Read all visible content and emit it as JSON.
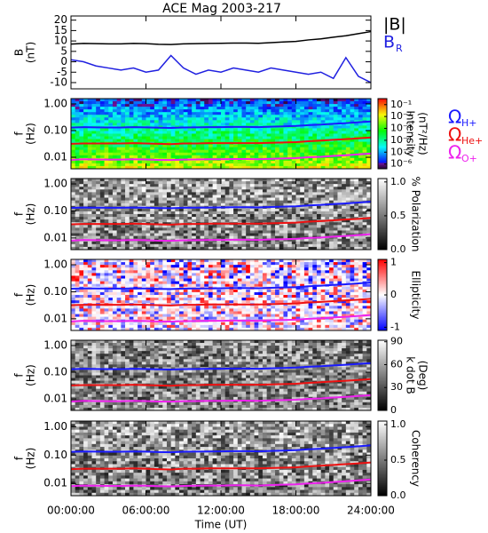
{
  "chart_data": [
    {
      "type": "line",
      "title": "ACE Mag 2003-217",
      "ylabel": "B",
      "yunit": "(nT)",
      "x": [
        0,
        1,
        2,
        3,
        4,
        5,
        6,
        7,
        8,
        9,
        10,
        11,
        12,
        13,
        14,
        15,
        16,
        17,
        18,
        19,
        20,
        21,
        22,
        23,
        24
      ],
      "xlim": [
        0,
        24
      ],
      "ylim": [
        -13,
        22
      ],
      "yticks": [
        -10,
        -5,
        0,
        5,
        10,
        15,
        20
      ],
      "series": [
        {
          "name": "|B|",
          "color": "#000000",
          "values": [
            8.5,
            8.8,
            8.7,
            8.6,
            8.6,
            8.8,
            8.7,
            8.4,
            8.3,
            8.6,
            8.7,
            8.8,
            8.9,
            9.0,
            9.0,
            8.9,
            9.2,
            9.5,
            9.8,
            10.5,
            11,
            11.8,
            12.5,
            13.5,
            14.5
          ]
        },
        {
          "name": "B",
          "subscript": "R",
          "color": "#2020e0",
          "values": [
            1,
            0,
            -2,
            -3,
            -4,
            -3,
            -5,
            -4,
            3,
            -3,
            -6,
            -4,
            -5,
            -3,
            -4,
            -5,
            -3,
            -4,
            -5,
            -6,
            -5,
            -8,
            2,
            -7,
            -10
          ]
        }
      ]
    },
    {
      "type": "spectrogram",
      "ylabel": "f",
      "yunit": "(Hz)",
      "ylog": true,
      "xlim": [
        0,
        24
      ],
      "ylim": [
        0.0037,
        1.58
      ],
      "yticks": [
        {
          "value": 1,
          "label": "1.00"
        },
        {
          "value": 0.1,
          "label": "0.10"
        },
        {
          "value": 0.01,
          "label": "0.01"
        }
      ],
      "colormap": "rainbow",
      "clog": true,
      "clim": [
        4e-07,
        0.32
      ],
      "clabel": "Intensity",
      "cunit": "(nT²/Hz)",
      "cticks": [
        {
          "value": 0.1,
          "label": "10⁻¹"
        },
        {
          "value": 0.01,
          "label": "10⁻²"
        },
        {
          "value": 0.001,
          "label": "10⁻³"
        },
        {
          "value": 0.0001,
          "label": "10⁻⁴"
        },
        {
          "value": 1e-05,
          "label": "10⁻⁵"
        },
        {
          "value": 1e-06,
          "label": "10⁻⁶"
        }
      ],
      "x": [
        0,
        1,
        2,
        3,
        4,
        5,
        6,
        7,
        8,
        9,
        10,
        11,
        12,
        13,
        14,
        15,
        16,
        17,
        18,
        19,
        20,
        21,
        22,
        23,
        24
      ],
      "series": [
        {
          "name": "Ω",
          "subscript": "H+",
          "color": "#1a1aff",
          "values": [
            0.13,
            0.134,
            0.132,
            0.131,
            0.131,
            0.134,
            0.132,
            0.128,
            0.126,
            0.131,
            0.132,
            0.134,
            0.135,
            0.137,
            0.137,
            0.135,
            0.14,
            0.144,
            0.149,
            0.16,
            0.167,
            0.179,
            0.19,
            0.205,
            0.22
          ]
        },
        {
          "name": "Ω",
          "subscript": "He+",
          "color": "#ee1111",
          "values": [
            0.032,
            0.033,
            0.033,
            0.033,
            0.033,
            0.034,
            0.033,
            0.032,
            0.031,
            0.033,
            0.033,
            0.034,
            0.034,
            0.034,
            0.034,
            0.034,
            0.035,
            0.036,
            0.037,
            0.04,
            0.042,
            0.045,
            0.048,
            0.051,
            0.055
          ]
        },
        {
          "name": "Ω",
          "subscript": "O+",
          "color": "#ee22ee",
          "values": [
            0.008,
            0.0084,
            0.0083,
            0.0082,
            0.0082,
            0.0084,
            0.0083,
            0.008,
            0.0079,
            0.0082,
            0.0083,
            0.0084,
            0.0084,
            0.0086,
            0.0086,
            0.0084,
            0.0088,
            0.009,
            0.0093,
            0.01,
            0.0104,
            0.0112,
            0.0119,
            0.0128,
            0.0138
          ]
        }
      ]
    },
    {
      "type": "spectrogram",
      "ylabel": "f",
      "yunit": "(Hz)",
      "ylog": true,
      "xlim": [
        0,
        24
      ],
      "ylim": [
        0.0037,
        1.58
      ],
      "yticks": [
        {
          "value": 1,
          "label": "1.00"
        },
        {
          "value": 0.1,
          "label": "0.10"
        },
        {
          "value": 0.01,
          "label": "0.01"
        }
      ],
      "colormap": "gray",
      "clim": [
        0,
        1.05
      ],
      "clabel": "% Polarization",
      "cticks": [
        {
          "value": 1,
          "label": "1.0"
        },
        {
          "value": 0.5,
          "label": "0.5"
        },
        {
          "value": 0,
          "label": "0.0"
        }
      ]
    },
    {
      "type": "spectrogram",
      "ylabel": "f",
      "yunit": "(Hz)",
      "ylog": true,
      "xlim": [
        0,
        24
      ],
      "ylim": [
        0.0037,
        1.58
      ],
      "yticks": [
        {
          "value": 1,
          "label": "1.00"
        },
        {
          "value": 0.1,
          "label": "0.10"
        },
        {
          "value": 0.01,
          "label": "0.01"
        }
      ],
      "colormap": "bwr",
      "clim": [
        -1.1,
        1.1
      ],
      "clabel": "Ellipticity",
      "cticks": [
        1,
        0,
        -1
      ]
    },
    {
      "type": "spectrogram",
      "ylabel": "f",
      "yunit": "(Hz)",
      "ylog": true,
      "xlim": [
        0,
        24
      ],
      "ylim": [
        0.0037,
        1.58
      ],
      "yticks": [
        {
          "value": 1,
          "label": "1.00"
        },
        {
          "value": 0.1,
          "label": "0.10"
        },
        {
          "value": 0.01,
          "label": "0.01"
        }
      ],
      "colormap": "gray",
      "clim": [
        0,
        92
      ],
      "clabel": "k dot B",
      "cunit": "(Deg)",
      "cticks": [
        90,
        60,
        30,
        0
      ]
    },
    {
      "type": "spectrogram",
      "ylabel": "f",
      "yunit": "(Hz)",
      "ylog": true,
      "xlim": [
        0,
        24
      ],
      "ylim": [
        0.0037,
        1.58
      ],
      "yticks": [
        {
          "value": 1,
          "label": "1.00"
        },
        {
          "value": 0.1,
          "label": "0.10"
        },
        {
          "value": 0.01,
          "label": "0.01"
        }
      ],
      "colormap": "gray",
      "clim": [
        0,
        1.05
      ],
      "clabel": "Coherency",
      "cticks": [
        {
          "value": 1,
          "label": "1.0"
        },
        {
          "value": 0.5,
          "label": "0.5"
        },
        {
          "value": 0,
          "label": "0.0"
        }
      ],
      "xlabel": "Time (UT)",
      "xticks": [
        {
          "value": 0,
          "label": "00:00:00"
        },
        {
          "value": 6,
          "label": "06:00:00"
        },
        {
          "value": 12,
          "label": "12:00:00"
        },
        {
          "value": 18,
          "label": "18:00:00"
        },
        {
          "value": 24,
          "label": "24:00:00"
        }
      ]
    }
  ]
}
